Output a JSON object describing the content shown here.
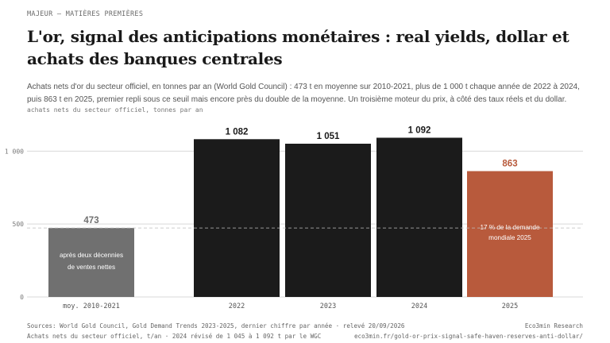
{
  "kicker": "MAJEUR — MATIÈRES PREMIÈRES",
  "title": "L'or, signal des anticipations monétaires : real yields, dollar et achats des banques centrales",
  "subtitle": "Achats nets d'or du secteur officiel, en tonnes par an (World Gold Council) : 473 t en moyenne sur 2010-2021, plus de 1 000 t chaque année de 2022 à 2024, puis 863 t en 2025, premier repli sous ce seuil mais encore près du double de la moyenne. Un troisième moteur du prix, à côté des taux réels et du dollar.",
  "footer": {
    "source_left": "Sources: World Gold Council, Gold Demand Trends 2023-2025, dernier chiffre par année · relevé 20/09/2026",
    "source_right": "Eco3min Research",
    "note_left": "Achats nets du secteur officiel, t/an · 2024 révisé de 1 045 à 1 092 t par le WGC",
    "note_right": "eco3min.fr/gold-or-prix-signal-safe-haven-reserves-anti-dollar/"
  },
  "colors": {
    "average": "#707070",
    "year": "#1b1b1b",
    "highlight": "#b85a3c",
    "grid": "#d9d9d9",
    "reference_line": "#bdbdbd"
  },
  "chart_data": {
    "type": "bar",
    "ylabel": "achats nets du secteur officiel, tonnes par an",
    "ylim": [
      0,
      1100
    ],
    "yticks": [
      0,
      500,
      1000
    ],
    "ytick_labels": [
      "0",
      "500",
      "1 000"
    ],
    "grid": true,
    "categories": [
      "moy. 2010-2021",
      "2022",
      "2023",
      "2024",
      "2025"
    ],
    "values": [
      473,
      1082,
      1051,
      1092,
      863
    ],
    "value_labels": [
      "473",
      "1 082",
      "1 051",
      "1 092",
      "863"
    ],
    "bar_colors": [
      "average",
      "year",
      "year",
      "year",
      "highlight"
    ],
    "reference_line": 473,
    "annotations": [
      {
        "category": "moy. 2010-2021",
        "text": [
          "après deux décennies",
          "de ventes nettes"
        ]
      },
      {
        "category": "2025",
        "text": [
          "17 % de la demande",
          "mondiale 2025"
        ]
      }
    ]
  }
}
